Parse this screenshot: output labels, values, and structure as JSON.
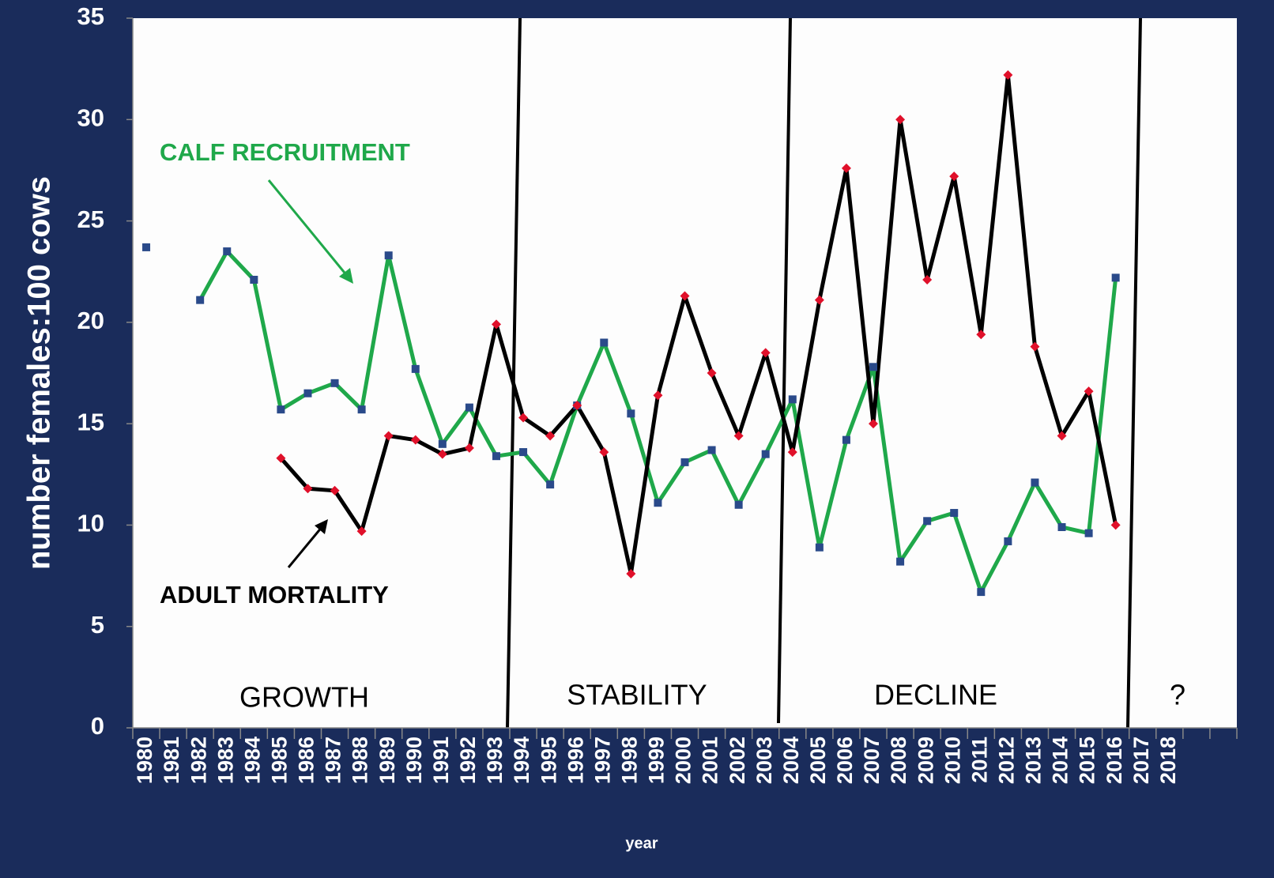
{
  "chart_data": {
    "type": "line",
    "y_label": "number females:100 cows",
    "x_label": "year",
    "categories": [
      "1980",
      "1981",
      "1982",
      "1983",
      "1984",
      "1985",
      "1986",
      "1987",
      "1988",
      "1989",
      "1990",
      "1991",
      "1992",
      "1993",
      "1994",
      "1995",
      "1996",
      "1997",
      "1998",
      "1999",
      "2000",
      "2001",
      "2002",
      "2003",
      "2004",
      "2005",
      "2006",
      "2007",
      "2008",
      "2009",
      "2010",
      "2011",
      "2012",
      "2013",
      "2014",
      "2015",
      "2016",
      "2017",
      "2018",
      null,
      null
    ],
    "series": [
      {
        "name": "CALF RECRUITMENT",
        "color": "#1fa84a",
        "marker_color": "#2a4a8a",
        "values": [
          23.7,
          null,
          21.1,
          23.5,
          22.1,
          15.7,
          16.5,
          17.0,
          15.7,
          23.3,
          17.7,
          14.0,
          15.8,
          13.4,
          13.6,
          12.0,
          15.9,
          19.0,
          15.5,
          11.1,
          13.1,
          13.7,
          11.0,
          13.5,
          16.2,
          8.9,
          14.2,
          17.8,
          8.2,
          10.2,
          10.6,
          6.7,
          9.2,
          12.1,
          9.9,
          9.6,
          22.2,
          null,
          null,
          null,
          null
        ]
      },
      {
        "name": "ADULT MORTALITY",
        "color": "#000000",
        "marker_color": "#e0102a",
        "values": [
          null,
          null,
          null,
          null,
          null,
          13.3,
          11.8,
          11.7,
          9.7,
          14.4,
          14.2,
          13.5,
          13.8,
          19.9,
          15.3,
          14.4,
          15.9,
          13.6,
          7.6,
          16.4,
          21.3,
          17.5,
          14.4,
          18.5,
          13.6,
          21.1,
          27.6,
          15.0,
          30.0,
          22.1,
          27.2,
          19.4,
          32.2,
          18.8,
          14.4,
          16.6,
          10.0,
          null,
          null,
          null,
          null
        ]
      }
    ],
    "phases": [
      "GROWTH",
      "STABILITY",
      "DECLINE",
      "?"
    ],
    "ylim": [
      0,
      35
    ],
    "yticks": [
      0,
      5,
      10,
      15,
      20,
      25,
      30,
      35
    ]
  }
}
